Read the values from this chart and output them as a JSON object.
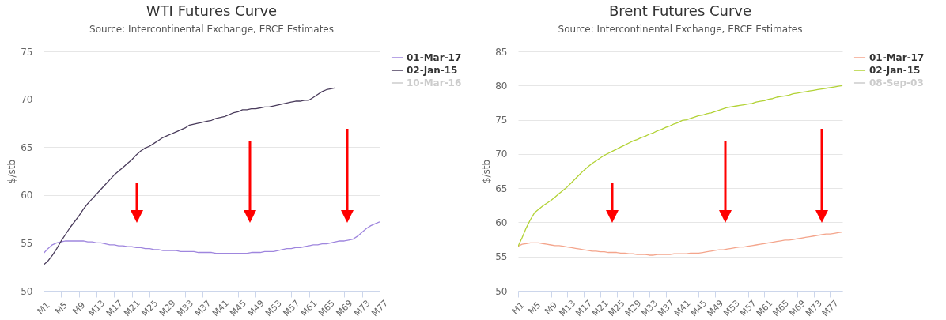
{
  "chart_data": [
    {
      "type": "line",
      "title": "WTI Futures Curve",
      "subtitle": "Source: Intercontinental Exchange, ERCE Estimates",
      "ylabel": "$/stb",
      "categories": [
        "M1",
        null,
        null,
        null,
        "M5",
        null,
        null,
        null,
        "M9",
        null,
        null,
        null,
        "M13",
        null,
        null,
        null,
        "M17",
        null,
        null,
        null,
        "M21",
        null,
        null,
        null,
        "M25",
        null,
        null,
        null,
        "M29",
        null,
        null,
        null,
        "M33",
        null,
        null,
        null,
        "M37",
        null,
        null,
        null,
        "M41",
        null,
        null,
        null,
        "M45",
        null,
        null,
        null,
        "M49",
        null,
        null,
        null,
        "M53",
        null,
        null,
        null,
        "M57",
        null,
        null,
        null,
        "M61",
        null,
        null,
        null,
        "M65",
        null,
        null,
        null,
        "M69",
        null,
        null,
        null,
        "M73",
        null,
        null,
        null,
        "M77"
      ],
      "series": [
        {
          "name": "01-Mar-17",
          "color": "#9f86de",
          "values": [
            53.9,
            54.4,
            54.8,
            55.0,
            55.1,
            55.2,
            55.2,
            55.2,
            55.2,
            55.2,
            55.1,
            55.1,
            55.0,
            55.0,
            54.9,
            54.8,
            54.8,
            54.7,
            54.7,
            54.6,
            54.6,
            54.5,
            54.5,
            54.4,
            54.4,
            54.3,
            54.3,
            54.2,
            54.2,
            54.2,
            54.2,
            54.1,
            54.1,
            54.1,
            54.1,
            54.0,
            54.0,
            54.0,
            54.0,
            53.9,
            53.9,
            53.9,
            53.9,
            53.9,
            53.9,
            53.9,
            53.9,
            54.0,
            54.0,
            54.0,
            54.1,
            54.1,
            54.1,
            54.2,
            54.3,
            54.4,
            54.4,
            54.5,
            54.5,
            54.6,
            54.7,
            54.8,
            54.8,
            54.9,
            54.9,
            55.0,
            55.1,
            55.2,
            55.2,
            55.3,
            55.4,
            55.7,
            56.1,
            56.5,
            56.8,
            57.0,
            57.2
          ]
        },
        {
          "name": "02-Jan-15",
          "color": "#4a3c5c",
          "values": [
            52.7,
            53.1,
            53.7,
            54.4,
            55.2,
            55.9,
            56.6,
            57.2,
            57.8,
            58.5,
            59.1,
            59.6,
            60.1,
            60.6,
            61.1,
            61.6,
            62.1,
            62.5,
            62.9,
            63.3,
            63.7,
            64.2,
            64.6,
            64.9,
            65.1,
            65.4,
            65.7,
            66.0,
            66.2,
            66.4,
            66.6,
            66.8,
            67.0,
            67.3,
            67.4,
            67.5,
            67.6,
            67.7,
            67.8,
            68.0,
            68.1,
            68.2,
            68.4,
            68.6,
            68.7,
            68.9,
            68.9,
            69.0,
            69.0,
            69.1,
            69.2,
            69.2,
            69.3,
            69.4,
            69.5,
            69.6,
            69.7,
            69.8,
            69.8,
            69.9,
            69.9,
            70.2,
            70.5,
            70.8,
            71.0,
            71.1,
            71.2,
            null,
            null,
            null,
            null,
            null,
            null,
            null,
            null,
            null,
            null
          ]
        },
        {
          "name": "10-Mar-16",
          "color": "#cccccc",
          "values": [
            null,
            null,
            null,
            null,
            null,
            null,
            null,
            null,
            null,
            null,
            null,
            null,
            null,
            null,
            null,
            null,
            null,
            null,
            null,
            null,
            null,
            null,
            null,
            null,
            null,
            null,
            null,
            null,
            null,
            null,
            null,
            null,
            null,
            null,
            null,
            null,
            null,
            null,
            null,
            null,
            null,
            null,
            null,
            null,
            null,
            null,
            null,
            null,
            null,
            null,
            null,
            null,
            null,
            null,
            null,
            null,
            null,
            null,
            null,
            null,
            null,
            null,
            null,
            null,
            null,
            null,
            null,
            null,
            null,
            null,
            null,
            null,
            null,
            null,
            null,
            null,
            null
          ]
        }
      ],
      "ylim": [
        50,
        75
      ],
      "yticks": [
        50,
        55,
        60,
        65,
        70,
        75
      ],
      "grid": "y",
      "legend": "right",
      "marker": "none",
      "line_style": "solid"
    },
    {
      "type": "line",
      "title": "Brent Futures Curve",
      "subtitle": "Source: Intercontinental Exchange, ERCE Estimates",
      "ylabel": "$/stb",
      "categories": [
        "M1",
        null,
        null,
        null,
        "M5",
        null,
        null,
        null,
        "M9",
        null,
        null,
        null,
        "M13",
        null,
        null,
        null,
        "M17",
        null,
        null,
        null,
        "M21",
        null,
        null,
        null,
        "M25",
        null,
        null,
        null,
        "M29",
        null,
        null,
        null,
        "M33",
        null,
        null,
        null,
        "M37",
        null,
        null,
        null,
        "M41",
        null,
        null,
        null,
        "M45",
        null,
        null,
        null,
        "M49",
        null,
        null,
        null,
        "M53",
        null,
        null,
        null,
        "M57",
        null,
        null,
        null,
        "M61",
        null,
        null,
        null,
        "M65",
        null,
        null,
        null,
        "M69",
        null,
        null,
        null,
        "M73",
        null,
        null,
        null,
        "M77",
        null,
        null,
        null
      ],
      "series": [
        {
          "name": "01-Mar-17",
          "color": "#f4a58c",
          "values": [
            56.5,
            56.8,
            56.9,
            57.0,
            57.0,
            57.0,
            56.9,
            56.8,
            56.7,
            56.6,
            56.6,
            56.5,
            56.4,
            56.3,
            56.2,
            56.1,
            56.0,
            55.9,
            55.8,
            55.8,
            55.7,
            55.7,
            55.6,
            55.6,
            55.6,
            55.5,
            55.5,
            55.4,
            55.4,
            55.3,
            55.3,
            55.3,
            55.2,
            55.2,
            55.3,
            55.3,
            55.3,
            55.3,
            55.4,
            55.4,
            55.4,
            55.4,
            55.5,
            55.5,
            55.5,
            55.6,
            55.7,
            55.8,
            55.9,
            56.0,
            56.0,
            56.1,
            56.2,
            56.3,
            56.4,
            56.4,
            56.5,
            56.6,
            56.7,
            56.8,
            56.9,
            57.0,
            57.1,
            57.2,
            57.3,
            57.4,
            57.4,
            57.5,
            57.6,
            57.7,
            57.8,
            57.9,
            58.0,
            58.1,
            58.2,
            58.3,
            58.3,
            58.4,
            58.5,
            58.6
          ]
        },
        {
          "name": "02-Jan-15",
          "color": "#b2d235",
          "values": [
            56.5,
            57.8,
            59.2,
            60.4,
            61.4,
            61.9,
            62.4,
            62.8,
            63.2,
            63.7,
            64.2,
            64.7,
            65.2,
            65.8,
            66.4,
            67.0,
            67.6,
            68.1,
            68.6,
            69.0,
            69.4,
            69.8,
            70.1,
            70.4,
            70.7,
            71.0,
            71.3,
            71.6,
            71.9,
            72.1,
            72.4,
            72.6,
            72.9,
            73.1,
            73.4,
            73.6,
            73.9,
            74.1,
            74.4,
            74.6,
            74.9,
            75.0,
            75.2,
            75.4,
            75.6,
            75.7,
            75.9,
            76.0,
            76.2,
            76.4,
            76.6,
            76.8,
            76.9,
            77.0,
            77.1,
            77.2,
            77.3,
            77.4,
            77.6,
            77.7,
            77.8,
            78.0,
            78.1,
            78.3,
            78.4,
            78.5,
            78.6,
            78.8,
            78.9,
            79.0,
            79.1,
            79.2,
            79.3,
            79.4,
            79.5,
            79.6,
            79.7,
            79.8,
            79.9,
            80.0
          ]
        },
        {
          "name": "08-Sep-03",
          "color": "#cccccc",
          "values": [
            null,
            null,
            null,
            null,
            null,
            null,
            null,
            null,
            null,
            null,
            null,
            null,
            null,
            null,
            null,
            null,
            null,
            null,
            null,
            null,
            null,
            null,
            null,
            null,
            null,
            null,
            null,
            null,
            null,
            null,
            null,
            null,
            null,
            null,
            null,
            null,
            null,
            null,
            null,
            null,
            null,
            null,
            null,
            null,
            null,
            null,
            null,
            null,
            null,
            null,
            null,
            null,
            null,
            null,
            null,
            null,
            null,
            null,
            null,
            null,
            null,
            null,
            null,
            null,
            null,
            null,
            null,
            null,
            null,
            null,
            null,
            null,
            null,
            null,
            null,
            null,
            null,
            null,
            null,
            null
          ]
        }
      ],
      "ylim": [
        50,
        85
      ],
      "yticks": [
        50,
        55,
        60,
        65,
        70,
        75,
        80,
        85
      ],
      "grid": "y",
      "legend": "right",
      "marker": "none",
      "line_style": "solid"
    }
  ]
}
